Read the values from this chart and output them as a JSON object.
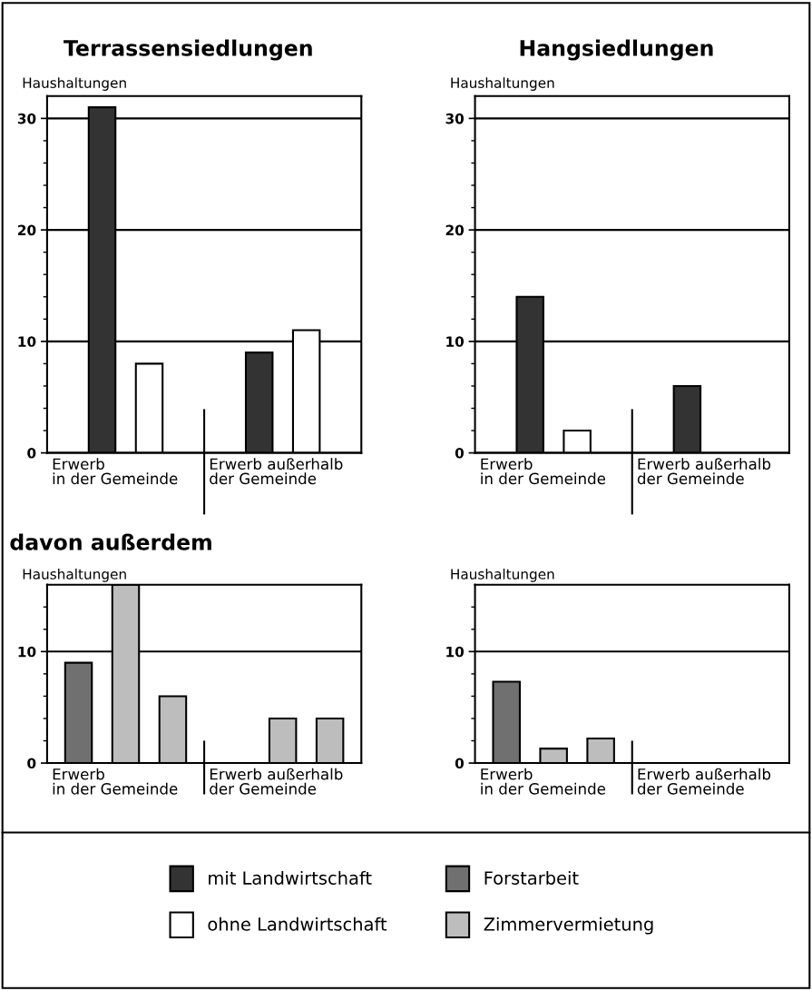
{
  "chart_data": [
    {
      "type": "bar",
      "title": "Terrassensiedlungen",
      "ylabel": "Haushaltungen",
      "categories": [
        "Erwerb\nin der Gemeinde",
        "Erwerb außerhalb\nder Gemeinde"
      ],
      "series": [
        {
          "name": "mit Landwirtschaft",
          "color": "#333333",
          "values": [
            31,
            9
          ]
        },
        {
          "name": "ohne Landwirtschaft",
          "color": "#ffffff",
          "values": [
            8,
            11
          ]
        }
      ],
      "ylim": [
        0,
        32
      ],
      "yticks": [
        0,
        {
          "value": 2,
          "label": null
        },
        {
          "value": 4,
          "label": null
        },
        {
          "value": 6,
          "label": null
        },
        {
          "value": 8,
          "label": null
        },
        10,
        {
          "value": 12,
          "label": null
        },
        {
          "value": 14,
          "label": null
        },
        {
          "value": 16,
          "label": null
        },
        {
          "value": 18,
          "label": null
        },
        20,
        {
          "value": 22,
          "label": null
        },
        {
          "value": 24,
          "label": null
        },
        {
          "value": 26,
          "label": null
        },
        {
          "value": 28,
          "label": null
        },
        30
      ],
      "grid": "y",
      "legend": "bottom"
    },
    {
      "type": "bar",
      "title": "Hangsiedlungen",
      "ylabel": "Haushaltungen",
      "categories": [
        "Erwerb\nin der Gemeinde",
        "Erwerb außerhalb\nder Gemeinde"
      ],
      "series": [
        {
          "color": "#333333",
          "values": [
            14,
            6
          ]
        },
        {
          "color": "#ffffff",
          "values": [
            2,
            null
          ]
        }
      ],
      "ylim": [
        0,
        32
      ],
      "yticks": [
        0,
        {
          "value": 2,
          "label": null
        },
        {
          "value": 4,
          "label": null
        },
        {
          "value": 6,
          "label": null
        },
        {
          "value": 8,
          "label": null
        },
        10,
        {
          "value": 12,
          "label": null
        },
        {
          "value": 14,
          "label": null
        },
        {
          "value": 16,
          "label": null
        },
        {
          "value": 18,
          "label": null
        },
        20,
        {
          "value": 22,
          "label": null
        },
        {
          "value": 24,
          "label": null
        },
        {
          "value": 26,
          "label": null
        },
        {
          "value": 28,
          "label": null
        },
        30
      ],
      "grid": "y"
    },
    {
      "type": "bar",
      "title": "davon außerdem",
      "ylabel": "Haushaltungen",
      "categories": [
        "Erwerb\nin der Gemeinde",
        "Erwerb außerhalb\nder Gemeinde"
      ],
      "series": [
        {
          "name": "Forstarbeit",
          "color": "#707070",
          "values": [
            9,
            null
          ]
        },
        {
          "name": "Zimmervermietung",
          "color": "#bdbdbd",
          "values": [
            16,
            4
          ]
        },
        {
          "color": "#bdbdbd",
          "values": [
            6,
            4
          ]
        }
      ],
      "ylim": [
        0,
        16
      ],
      "yticks": [
        0,
        {
          "value": 2,
          "label": null
        },
        {
          "value": 4,
          "label": null
        },
        {
          "value": 6,
          "label": null
        },
        {
          "value": 8,
          "label": null
        },
        10,
        {
          "value": 12,
          "label": null
        },
        {
          "value": 14,
          "label": null
        }
      ],
      "grid": "y",
      "legend": "bottom"
    },
    {
      "type": "bar",
      "ylabel": "Haushaltungen",
      "categories": [
        "Erwerb\nin der Gemeinde",
        "Erwerb außerhalb\nder Gemeinde"
      ],
      "series": [
        {
          "color": "#707070",
          "values": [
            7.3,
            null
          ]
        },
        {
          "color": "#bdbdbd",
          "values": [
            1.3,
            null
          ]
        },
        {
          "color": "#bdbdbd",
          "values": [
            2.2,
            null
          ]
        }
      ],
      "ylim": [
        0,
        16
      ],
      "yticks": [
        0,
        {
          "value": 2,
          "label": null
        },
        {
          "value": 4,
          "label": null
        },
        {
          "value": 6,
          "label": null
        },
        {
          "value": 8,
          "label": null
        },
        10,
        {
          "value": 12,
          "label": null
        },
        {
          "value": 14,
          "label": null
        }
      ],
      "grid": "y"
    }
  ]
}
